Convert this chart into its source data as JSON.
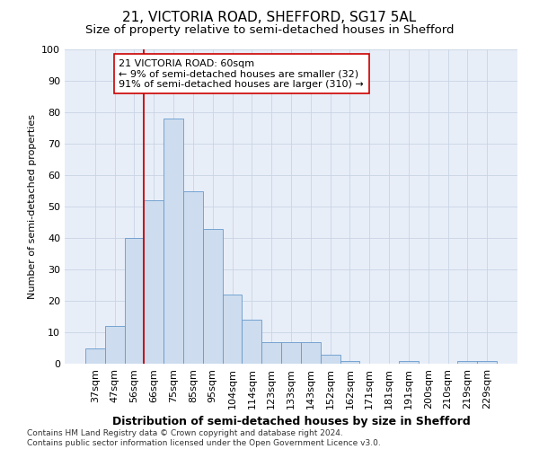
{
  "title": "21, VICTORIA ROAD, SHEFFORD, SG17 5AL",
  "subtitle": "Size of property relative to semi-detached houses in Shefford",
  "xlabel": "Distribution of semi-detached houses by size in Shefford",
  "ylabel": "Number of semi-detached properties",
  "categories": [
    "37sqm",
    "47sqm",
    "56sqm",
    "66sqm",
    "75sqm",
    "85sqm",
    "95sqm",
    "104sqm",
    "114sqm",
    "123sqm",
    "133sqm",
    "143sqm",
    "152sqm",
    "162sqm",
    "171sqm",
    "181sqm",
    "191sqm",
    "200sqm",
    "210sqm",
    "219sqm",
    "229sqm"
  ],
  "values": [
    5,
    12,
    40,
    52,
    78,
    55,
    43,
    22,
    14,
    7,
    7,
    7,
    3,
    1,
    0,
    0,
    1,
    0,
    0,
    1,
    1
  ],
  "bar_color": "#cddcee",
  "bar_edge_color": "#6699cc",
  "vline_x": 2.5,
  "vline_color": "#cc0000",
  "annotation_text": "21 VICTORIA ROAD: 60sqm\n← 9% of semi-detached houses are smaller (32)\n91% of semi-detached houses are larger (310) →",
  "annotation_box_color": "#ffffff",
  "annotation_box_edge": "#cc0000",
  "ylim": [
    0,
    100
  ],
  "yticks": [
    0,
    10,
    20,
    30,
    40,
    50,
    60,
    70,
    80,
    90,
    100
  ],
  "grid_color": "#c8d4e4",
  "bg_color": "#e8eef8",
  "footer": "Contains HM Land Registry data © Crown copyright and database right 2024.\nContains public sector information licensed under the Open Government Licence v3.0.",
  "title_fontsize": 11,
  "subtitle_fontsize": 9.5,
  "xlabel_fontsize": 9,
  "ylabel_fontsize": 8,
  "tick_fontsize": 8,
  "annotation_fontsize": 8,
  "footer_fontsize": 6.5
}
